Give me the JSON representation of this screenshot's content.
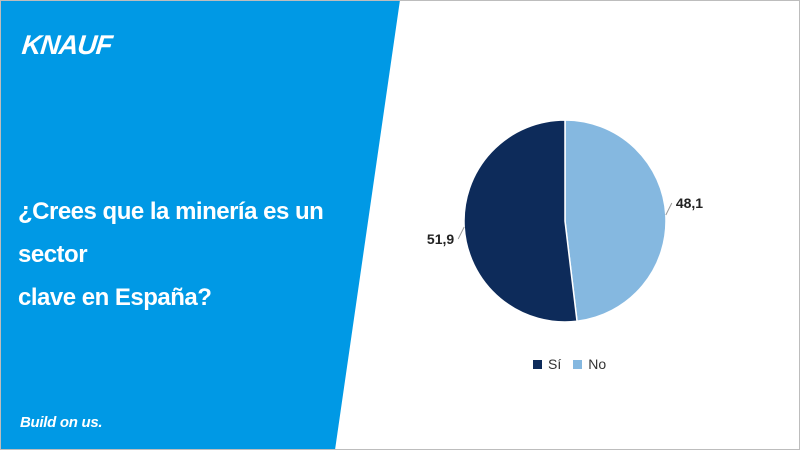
{
  "brand": {
    "logo_text": "KNAUF",
    "slogan": "Build on us."
  },
  "question": {
    "line1": "¿Crees que la minería es un sector",
    "line2": "clave en España?"
  },
  "colors": {
    "panel_blue": "#0099e5",
    "si": "#0d2b5a",
    "no": "#85b8e0"
  },
  "chart_data": {
    "type": "pie",
    "categories": [
      "Sí",
      "No"
    ],
    "values": [
      51.9,
      48.1
    ],
    "value_labels": [
      "51,9",
      "48,1"
    ],
    "legend": [
      "Sí",
      "No"
    ],
    "legend_position": "bottom"
  }
}
